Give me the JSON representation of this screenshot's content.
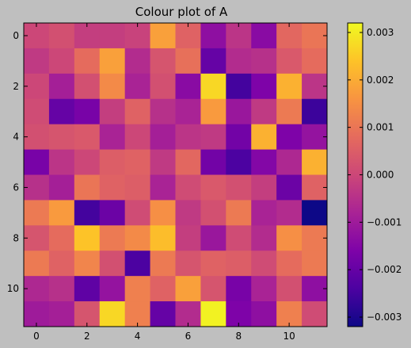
{
  "chart_data": {
    "type": "heatmap",
    "title": "Colour plot of A",
    "colormap": "plasma",
    "x_ticks": [
      "0",
      "2",
      "4",
      "6",
      "8",
      "10"
    ],
    "y_ticks": [
      "0",
      "2",
      "4",
      "6",
      "8",
      "10"
    ],
    "colorbar": {
      "vmin": -0.0032,
      "vmax": 0.0032,
      "ticks": [
        {
          "value": 0.003,
          "label": "0.003"
        },
        {
          "value": 0.002,
          "label": "0.002"
        },
        {
          "value": 0.001,
          "label": "0.001"
        },
        {
          "value": 0.0,
          "label": "0.000"
        },
        {
          "value": -0.001,
          "label": "−0.001"
        },
        {
          "value": -0.002,
          "label": "−0.002"
        },
        {
          "value": -0.003,
          "label": "−0.003"
        }
      ]
    },
    "values": [
      [
        0.0,
        0.0002,
        -0.0002,
        -0.0002,
        -0.0001,
        0.0018,
        0.0006,
        -0.0013,
        -0.0004,
        -0.0014,
        0.0007,
        0.001
      ],
      [
        -0.0003,
        0.0,
        0.0008,
        0.0018,
        -0.0006,
        0.0003,
        0.0009,
        -0.002,
        -0.0006,
        -0.0005,
        0.0004,
        0.0008
      ],
      [
        0.0,
        -0.0009,
        0.0002,
        0.0014,
        -0.0008,
        0.0002,
        -0.0014,
        0.0027,
        -0.0025,
        -0.0016,
        0.0021,
        -0.0004
      ],
      [
        0.0001,
        -0.002,
        -0.0017,
        -0.0002,
        0.0006,
        -0.0005,
        -0.0008,
        0.0017,
        -0.0011,
        -0.0003,
        0.0011,
        -0.0026
      ],
      [
        0.0002,
        0.0003,
        0.0004,
        -0.0008,
        0.0,
        -0.0009,
        -0.0004,
        -0.0003,
        -0.0018,
        0.0021,
        -0.0016,
        -0.0012
      ],
      [
        -0.0017,
        -0.0004,
        0.0,
        0.0005,
        0.0006,
        -0.0003,
        0.0007,
        -0.0018,
        -0.0024,
        -0.0015,
        -0.0007,
        0.0021
      ],
      [
        -0.0005,
        -0.0009,
        0.001,
        0.0006,
        0.0005,
        -0.0008,
        0.0001,
        0.0004,
        0.0002,
        -0.0002,
        -0.0019,
        0.0006
      ],
      [
        0.0011,
        0.0017,
        -0.0025,
        -0.0019,
        0.0001,
        0.0015,
        -0.0003,
        0.0002,
        0.0011,
        -0.0008,
        -0.0006,
        -0.0033
      ],
      [
        0.0003,
        0.0008,
        0.0024,
        0.0011,
        0.0014,
        0.0023,
        -0.0002,
        -0.0011,
        0.0001,
        -0.0006,
        0.0015,
        0.0011
      ],
      [
        0.0011,
        0.0006,
        0.0013,
        0.0002,
        -0.0024,
        0.0011,
        0.0003,
        0.0006,
        0.0005,
        0.0001,
        0.0008,
        0.0011
      ],
      [
        -0.0007,
        -0.0005,
        -0.0021,
        -0.0012,
        0.0012,
        0.0006,
        0.0018,
        0.0003,
        -0.0017,
        -0.0008,
        0.0002,
        -0.0013
      ],
      [
        -0.001,
        -0.0009,
        0.0003,
        0.0027,
        0.0012,
        -0.002,
        -0.0006,
        0.0031,
        -0.0016,
        -0.0013,
        0.0012,
        0.0001
      ]
    ]
  }
}
